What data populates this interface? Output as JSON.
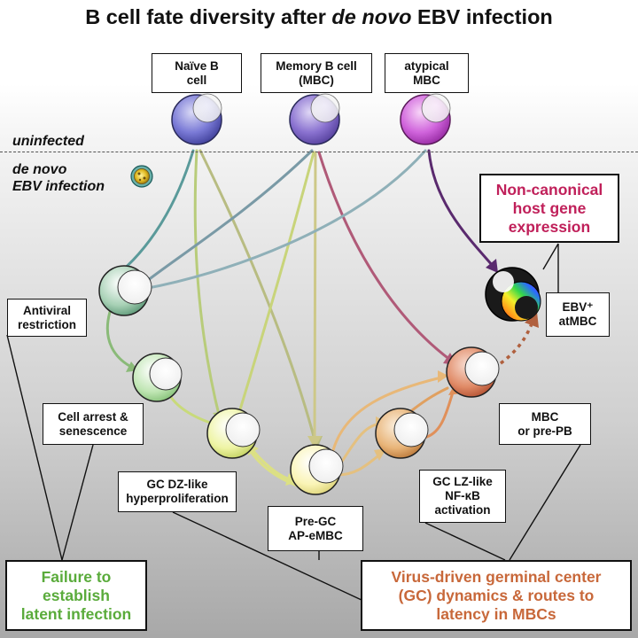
{
  "title": {
    "prefix": "B cell fate diversity after ",
    "emphasis": "de novo",
    "suffix": " EBV infection"
  },
  "states": {
    "uninfected": "uninfected",
    "infection": "de novo\nEBV infection"
  },
  "labels": {
    "naive": "Naïve B\ncell",
    "memory": "Memory B cell\n(MBC)",
    "atypical": "atypical\nMBC",
    "antiviral": "Antiviral\nrestriction",
    "arrest": "Cell arrest &\nsenescence",
    "gc_dz": "GC DZ-like\nhyperproliferation",
    "pre_gc": "Pre-GC\nAP-eMBC",
    "gc_lz": "GC LZ-like\nNF-κB\nactivation",
    "mbc_prepb": "MBC\nor pre-PB",
    "ebv_atmbc": "EBV⁺\natMBC",
    "noncanonical": "Non-canonical\nhost gene\nexpression",
    "failure": "Failure to\nestablish\nlatent infection",
    "virus_driven": "Virus-driven germinal center\n(GC) dynamics & routes to\nlatency in MBCs"
  },
  "colors": {
    "naive": "#5858c6",
    "memory": "#7a62c4",
    "atypical": "#c24ad0",
    "antiviral": "#5fa27e",
    "arrest": "#8acb80",
    "gc_dz": "#d8e86c",
    "pre_gc": "#f0ea8a",
    "gc_lz": "#d99648",
    "mbc_prepb": "#d4623e",
    "failure_text": "#5aab3b",
    "virus_text": "#c8683a",
    "noncanonical_text": "#c0205a"
  }
}
